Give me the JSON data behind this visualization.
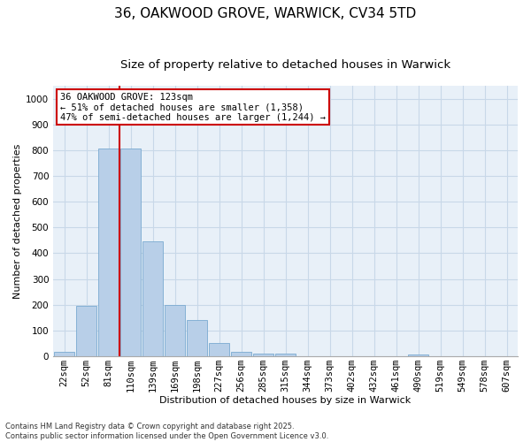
{
  "title_line1": "36, OAKWOOD GROVE, WARWICK, CV34 5TD",
  "title_line2": "Size of property relative to detached houses in Warwick",
  "xlabel": "Distribution of detached houses by size in Warwick",
  "ylabel": "Number of detached properties",
  "categories": [
    "22sqm",
    "52sqm",
    "81sqm",
    "110sqm",
    "139sqm",
    "169sqm",
    "198sqm",
    "227sqm",
    "256sqm",
    "285sqm",
    "315sqm",
    "344sqm",
    "373sqm",
    "402sqm",
    "432sqm",
    "461sqm",
    "490sqm",
    "519sqm",
    "549sqm",
    "578sqm",
    "607sqm"
  ],
  "values": [
    18,
    195,
    805,
    805,
    445,
    198,
    140,
    50,
    18,
    12,
    12,
    0,
    0,
    0,
    0,
    0,
    8,
    0,
    0,
    0,
    0
  ],
  "bar_color": "#b8cfe8",
  "bar_edge_color": "#7aaad0",
  "vline_color": "#cc0000",
  "vline_x_index": 3,
  "annotation_line1": "36 OAKWOOD GROVE: 123sqm",
  "annotation_line2": "← 51% of detached houses are smaller (1,358)",
  "annotation_line3": "47% of semi-detached houses are larger (1,244) →",
  "annotation_box_color": "#ffffff",
  "annotation_box_edge": "#cc0000",
  "ylim": [
    0,
    1050
  ],
  "yticks": [
    0,
    100,
    200,
    300,
    400,
    500,
    600,
    700,
    800,
    900,
    1000
  ],
  "grid_color": "#c8d8e8",
  "bg_color": "#e8f0f8",
  "footer_text": "Contains HM Land Registry data © Crown copyright and database right 2025.\nContains public sector information licensed under the Open Government Licence v3.0.",
  "title_fontsize": 11,
  "subtitle_fontsize": 9.5,
  "axis_label_fontsize": 8,
  "tick_fontsize": 7.5,
  "annotation_fontsize": 7.5,
  "footer_fontsize": 6
}
